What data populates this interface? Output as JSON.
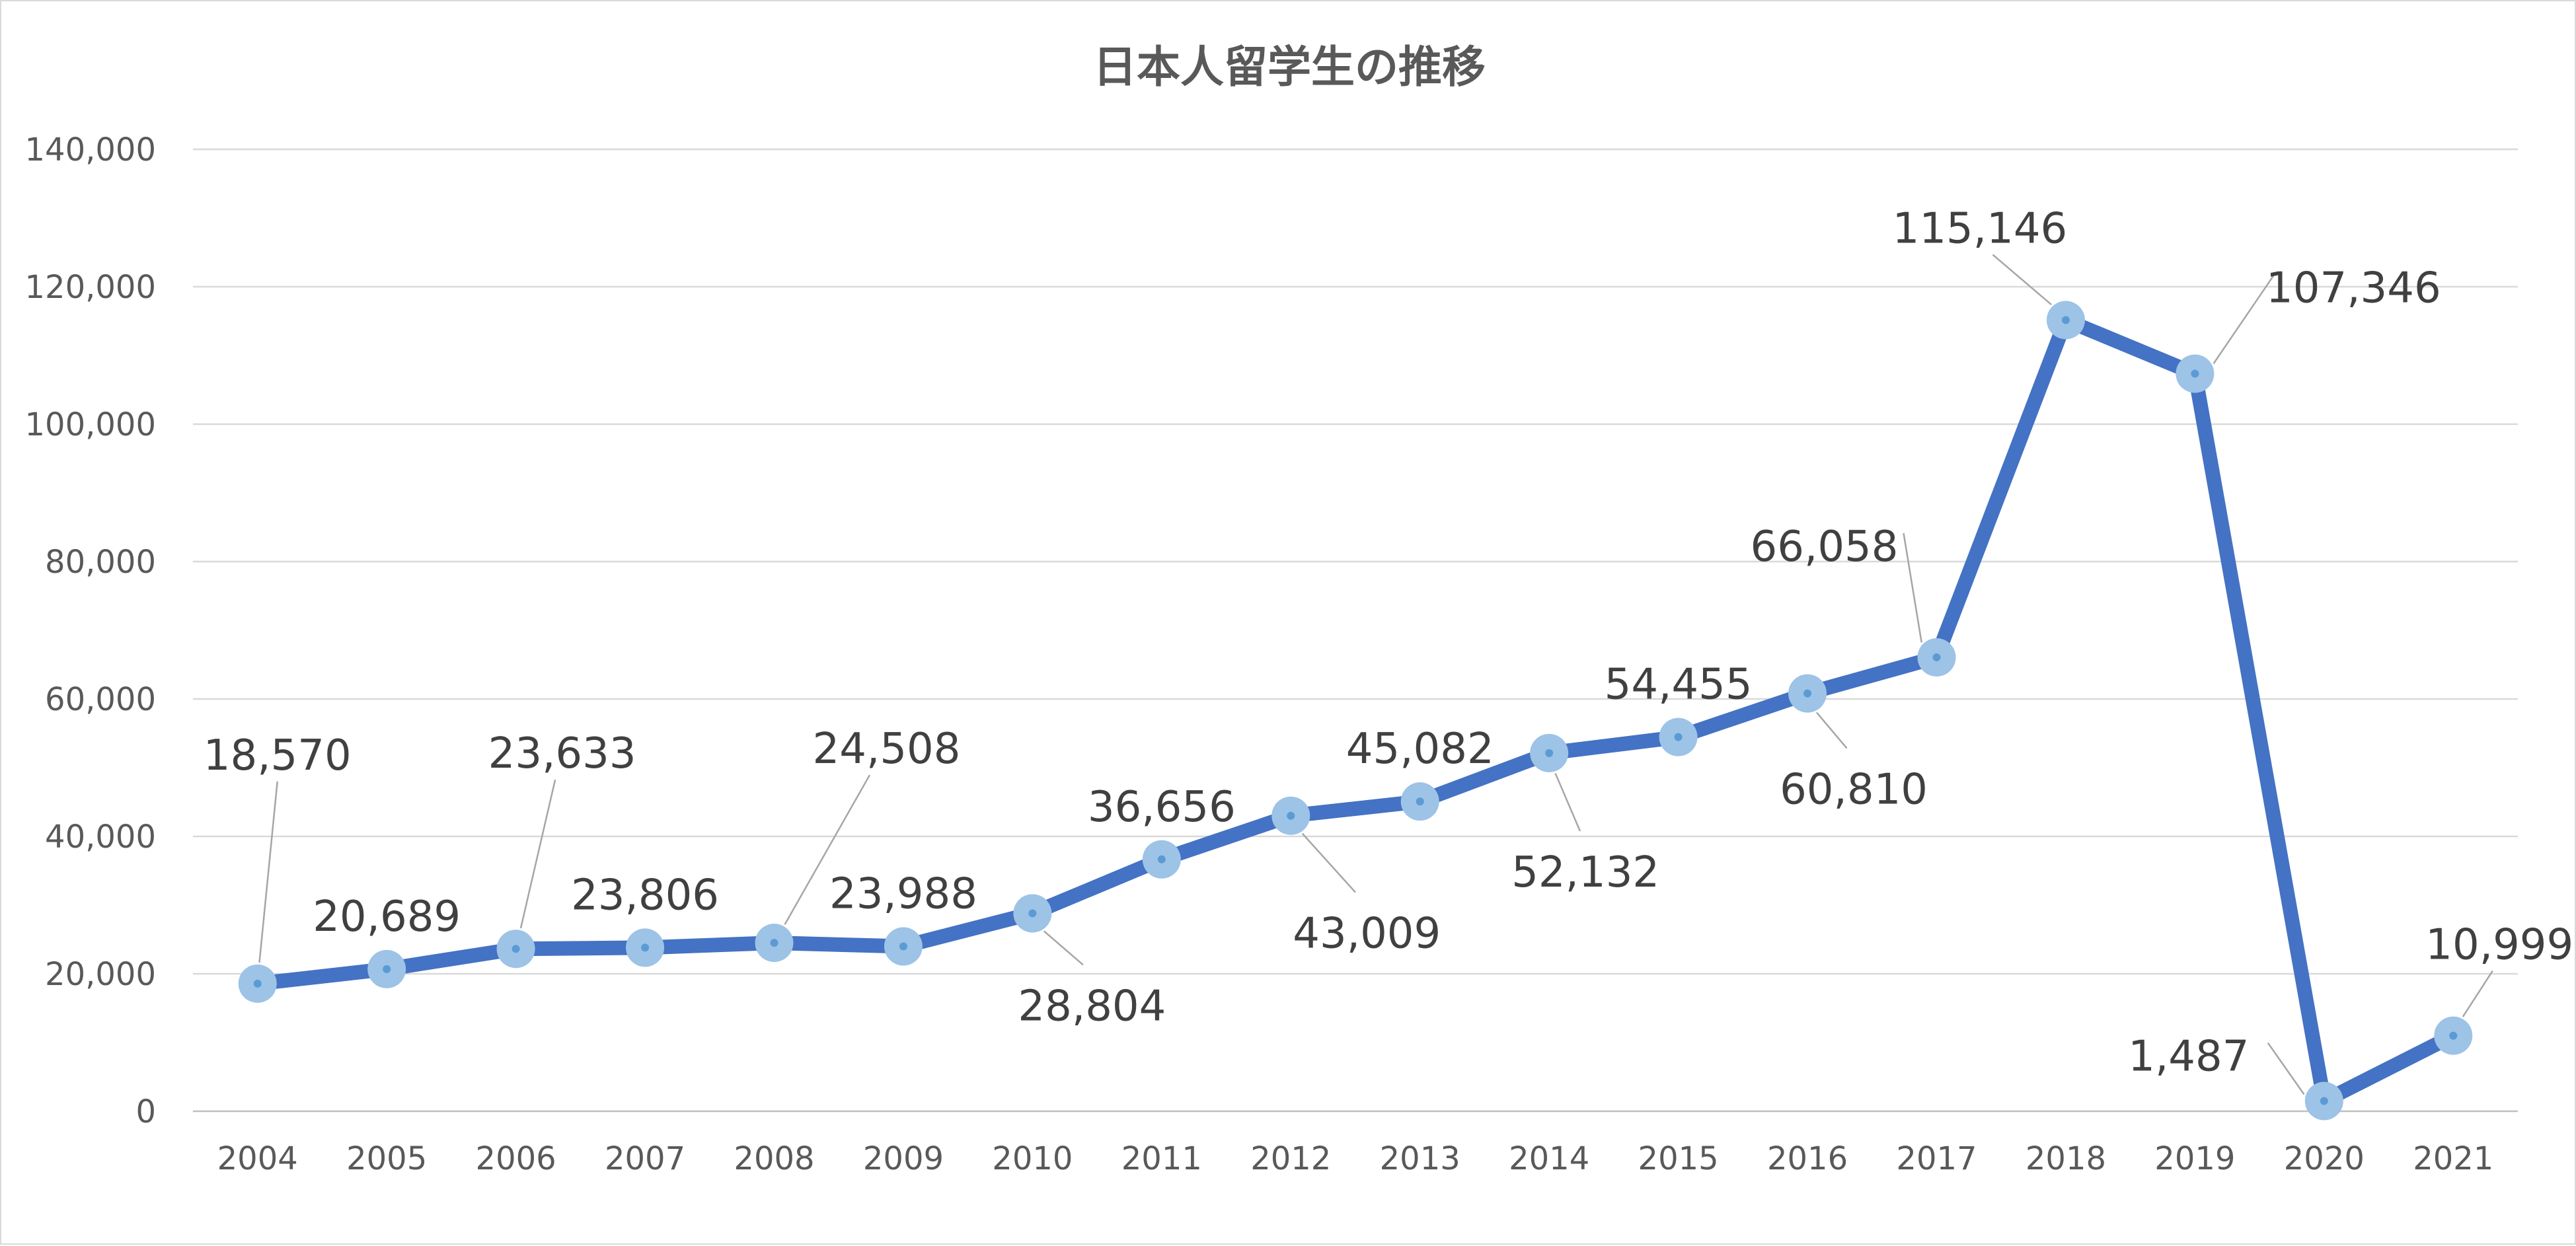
{
  "chart_data": {
    "type": "line",
    "title": "日本人留学生の推移",
    "xlabel": "",
    "ylabel": "",
    "ylim": [
      0,
      140000
    ],
    "yticks": [
      0,
      20000,
      40000,
      60000,
      80000,
      100000,
      120000,
      140000
    ],
    "ytick_labels": [
      "0",
      "20,000",
      "40,000",
      "60,000",
      "80,000",
      "100,000",
      "120,000",
      "140,000"
    ],
    "grid": true,
    "legend": "none",
    "categories": [
      "2004",
      "2005",
      "2006",
      "2007",
      "2008",
      "2009",
      "2010",
      "2011",
      "2012",
      "2013",
      "2014",
      "2015",
      "2016",
      "2017",
      "2018",
      "2019",
      "2020",
      "2021"
    ],
    "series": [
      {
        "line_color": "#4472c4",
        "marker_color": "#9dc3e6",
        "values": [
          18570,
          20689,
          23633,
          23806,
          24508,
          23988,
          28804,
          36656,
          43009,
          45082,
          52132,
          54455,
          60810,
          66058,
          115146,
          107346,
          1487,
          10999
        ],
        "value_labels": [
          "18,570",
          "20,689",
          "23,633",
          "23,806",
          "24,508",
          "23,988",
          "28,804",
          "36,656",
          "43,009",
          "45,082",
          "52,132",
          "54,455",
          "60,810",
          "66,058",
          "115,146",
          "107,346",
          "1,487",
          "10,999"
        ]
      }
    ]
  }
}
